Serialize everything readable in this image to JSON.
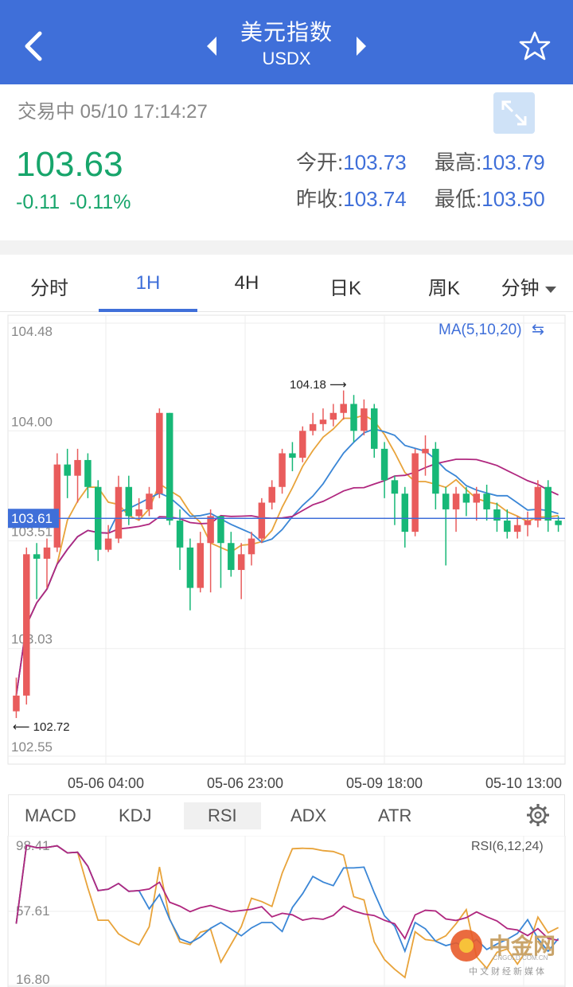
{
  "header": {
    "title": "美元指数",
    "subtitle": "USDX",
    "back_icon": "chevron-left-icon",
    "prev_icon": "triangle-left-icon",
    "next_icon": "triangle-right-icon",
    "favorite_icon": "star-outline-icon"
  },
  "quote": {
    "status": "交易中 05/10 17:14:27",
    "price": "103.63",
    "change": "-0.11",
    "change_pct": "-0.11%",
    "open_label": "今开:",
    "open": "103.73",
    "high_label": "最高:",
    "high": "103.79",
    "prev_close_label": "昨收:",
    "prev_close": "103.74",
    "low_label": "最低:",
    "low": "103.50",
    "expand_icon": "fullscreen-icon"
  },
  "tabs": [
    "分时",
    "1H",
    "4H",
    "日K",
    "周K",
    "分钟"
  ],
  "active_tab": 1,
  "chart_data": {
    "type": "candlestick",
    "ma_label": "MA(5,10,20)",
    "y_ticks": [
      "104.48",
      "104.00",
      "103.51",
      "103.03",
      "102.55"
    ],
    "ylim": [
      102.55,
      104.48
    ],
    "x_ticks": [
      "05-06 04:00",
      "05-06 23:00",
      "05-09 18:00",
      "05-10 13:00"
    ],
    "current_price_label": "103.61",
    "current_price": 103.61,
    "max_label": "104.18",
    "min_label": "102.72",
    "candles": [
      [
        102.75,
        102.82,
        102.72,
        102.9
      ],
      [
        102.82,
        103.45,
        102.78,
        103.48
      ],
      [
        103.45,
        103.43,
        103.25,
        103.5
      ],
      [
        103.43,
        103.48,
        103.3,
        103.52
      ],
      [
        103.48,
        103.85,
        103.46,
        103.9
      ],
      [
        103.85,
        103.8,
        103.7,
        103.92
      ],
      [
        103.8,
        103.87,
        103.68,
        103.92
      ],
      [
        103.87,
        103.75,
        103.7,
        103.9
      ],
      [
        103.75,
        103.47,
        103.42,
        103.78
      ],
      [
        103.47,
        103.52,
        103.46,
        103.58
      ],
      [
        103.52,
        103.75,
        103.5,
        103.8
      ],
      [
        103.75,
        103.62,
        103.58,
        103.8
      ],
      [
        103.62,
        103.65,
        103.6,
        103.7
      ],
      [
        103.65,
        103.72,
        103.62,
        103.75
      ],
      [
        103.72,
        104.08,
        103.7,
        104.1
      ],
      [
        104.08,
        103.6,
        103.58,
        104.08
      ],
      [
        103.6,
        103.48,
        103.38,
        103.65
      ],
      [
        103.48,
        103.3,
        103.2,
        103.52
      ],
      [
        103.3,
        103.5,
        103.28,
        103.55
      ],
      [
        103.5,
        103.62,
        103.28,
        103.65
      ],
      [
        103.62,
        103.5,
        103.3,
        103.62
      ],
      [
        103.5,
        103.38,
        103.35,
        103.55
      ],
      [
        103.38,
        103.45,
        103.25,
        103.5
      ],
      [
        103.45,
        103.52,
        103.4,
        103.55
      ],
      [
        103.52,
        103.68,
        103.5,
        103.7
      ],
      [
        103.68,
        103.75,
        103.65,
        103.78
      ],
      [
        103.75,
        103.9,
        103.72,
        103.92
      ],
      [
        103.9,
        103.88,
        103.82,
        103.95
      ],
      [
        103.88,
        104.0,
        103.86,
        104.02
      ],
      [
        104.0,
        104.03,
        103.98,
        104.08
      ],
      [
        104.03,
        104.05,
        104.0,
        104.1
      ],
      [
        104.05,
        104.08,
        104.02,
        104.12
      ],
      [
        104.08,
        104.12,
        104.05,
        104.18
      ],
      [
        104.12,
        104.0,
        103.95,
        104.16
      ],
      [
        104.0,
        104.1,
        103.98,
        104.14
      ],
      [
        104.1,
        103.92,
        103.88,
        104.12
      ],
      [
        103.92,
        103.78,
        103.7,
        103.95
      ],
      [
        103.78,
        103.72,
        103.58,
        103.8
      ],
      [
        103.72,
        103.55,
        103.48,
        103.75
      ],
      [
        103.55,
        103.9,
        103.53,
        103.92
      ],
      [
        103.9,
        103.92,
        103.8,
        103.98
      ],
      [
        103.92,
        103.72,
        103.65,
        103.95
      ],
      [
        103.72,
        103.65,
        103.4,
        103.75
      ],
      [
        103.65,
        103.72,
        103.55,
        103.75
      ],
      [
        103.72,
        103.68,
        103.62,
        103.75
      ],
      [
        103.68,
        103.72,
        103.6,
        103.75
      ],
      [
        103.72,
        103.65,
        103.6,
        103.76
      ],
      [
        103.65,
        103.6,
        103.55,
        103.68
      ],
      [
        103.6,
        103.55,
        103.52,
        103.65
      ],
      [
        103.55,
        103.58,
        103.52,
        103.62
      ],
      [
        103.58,
        103.6,
        103.53,
        103.64
      ],
      [
        103.6,
        103.75,
        103.57,
        103.78
      ],
      [
        103.75,
        103.6,
        103.55,
        103.78
      ],
      [
        103.6,
        103.58,
        103.55,
        103.62
      ]
    ]
  },
  "indicators": {
    "tabs": [
      "MACD",
      "KDJ",
      "RSI",
      "ADX",
      "ATR"
    ],
    "active": 2,
    "settings_icon": "gear-icon",
    "rsi_label": "RSI(6,12,24)",
    "y_ticks": [
      "98.41",
      "57.61",
      "16.80"
    ]
  },
  "watermark": {
    "name": "中金网",
    "url": "CNGOLD.COM.CN",
    "tagline": "中文财经新媒体",
    "icon": "cngold-logo-icon"
  }
}
